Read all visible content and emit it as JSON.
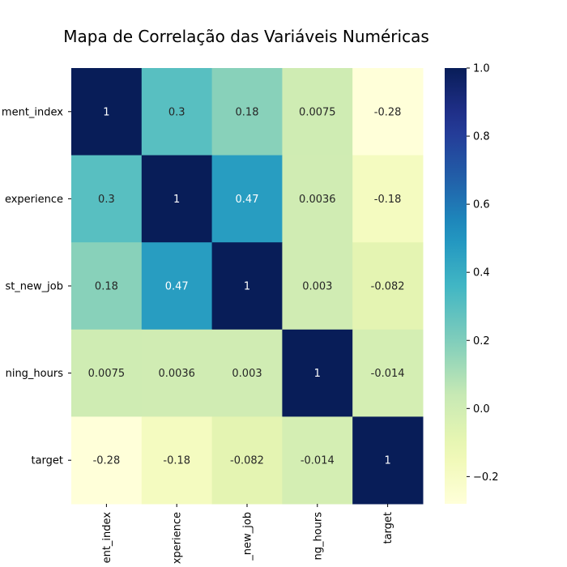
{
  "chart_data": {
    "type": "heatmap",
    "title": "Mapa de Correlação das Variáveis Numéricas",
    "row_labels": [
      "ment_index",
      "experience",
      "st_new_job",
      "ning_hours",
      "target"
    ],
    "col_labels": [
      "ent_index",
      "xperience",
      "_new_job",
      "ng_hours",
      "target"
    ],
    "matrix": [
      [
        1,
        0.3,
        0.18,
        0.0075,
        -0.28
      ],
      [
        0.3,
        1,
        0.47,
        0.0036,
        -0.18
      ],
      [
        0.18,
        0.47,
        1,
        0.003,
        -0.082
      ],
      [
        0.0075,
        0.0036,
        0.003,
        1,
        -0.014
      ],
      [
        -0.28,
        -0.18,
        -0.082,
        -0.014,
        1
      ]
    ],
    "annotations": [
      [
        "1",
        "0.3",
        "0.18",
        "0.0075",
        "-0.28"
      ],
      [
        "0.3",
        "1",
        "0.47",
        "0.0036",
        "-0.18"
      ],
      [
        "0.18",
        "0.47",
        "1",
        "0.003",
        "-0.082"
      ],
      [
        "0.0075",
        "0.0036",
        "0.003",
        "1",
        "-0.014"
      ],
      [
        "-0.28",
        "-0.18",
        "-0.082",
        "-0.014",
        "1"
      ]
    ],
    "colormap": "YlGnBu",
    "vmin": -0.28,
    "vmax": 1,
    "colorbar_ticks": [
      1.0,
      0.8,
      0.6,
      0.4,
      0.2,
      0.0,
      -0.2
    ],
    "colorbar_tick_labels": [
      "1.0",
      "0.8",
      "0.6",
      "0.4",
      "0.2",
      "0.0",
      "−0.2"
    ]
  }
}
